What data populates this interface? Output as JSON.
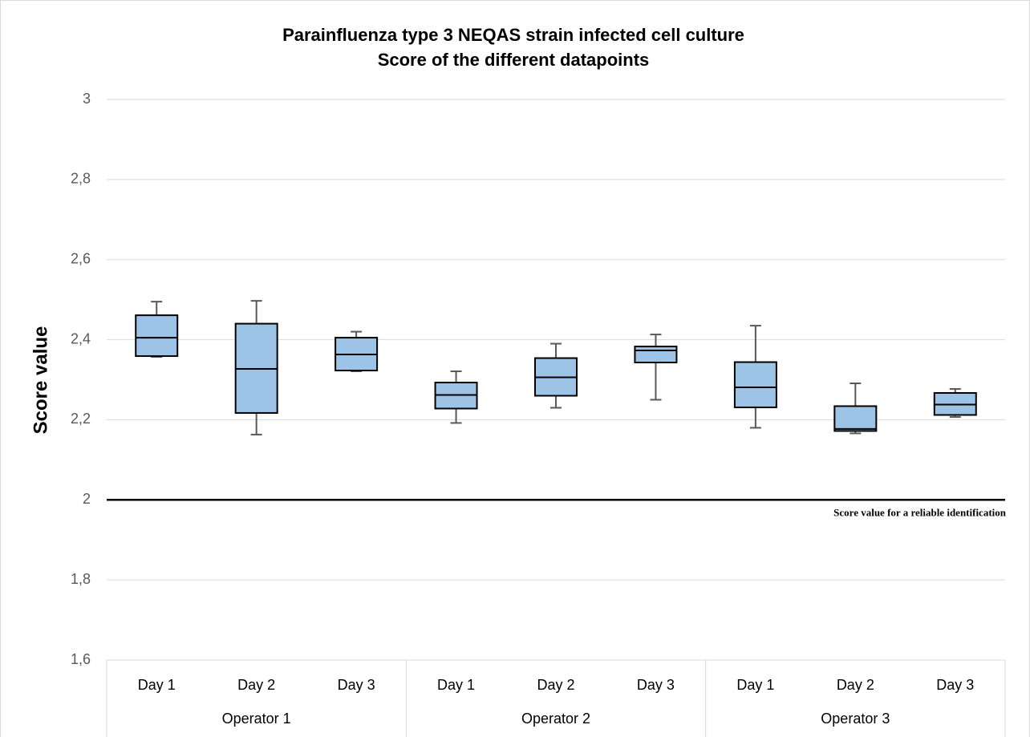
{
  "chart_data": {
    "type": "box",
    "title": "Parainfluenza type 3 NEQAS strain infected cell culture",
    "subtitle": "Score of the different datapoints",
    "y_label": "Score value",
    "groups": [
      {
        "name": "Operator 1",
        "categories": [
          "Day 1",
          "Day 2",
          "Day 3"
        ]
      },
      {
        "name": "Operator 2",
        "categories": [
          "Day 1",
          "Day 2",
          "Day 3"
        ]
      },
      {
        "name": "Operator 3",
        "categories": [
          "Day 1",
          "Day 2",
          "Day 3"
        ]
      }
    ],
    "boxes": [
      {
        "min": 2.357,
        "q1": 2.359,
        "median": 2.405,
        "q3": 2.461,
        "max": 2.495
      },
      {
        "min": 2.163,
        "q1": 2.217,
        "median": 2.327,
        "q3": 2.44,
        "max": 2.497
      },
      {
        "min": 2.321,
        "q1": 2.323,
        "median": 2.363,
        "q3": 2.405,
        "max": 2.42
      },
      {
        "min": 2.192,
        "q1": 2.228,
        "median": 2.262,
        "q3": 2.293,
        "max": 2.321
      },
      {
        "min": 2.23,
        "q1": 2.26,
        "median": 2.306,
        "q3": 2.354,
        "max": 2.39
      },
      {
        "min": 2.25,
        "q1": 2.343,
        "median": 2.373,
        "q3": 2.383,
        "max": 2.413
      },
      {
        "min": 2.18,
        "q1": 2.231,
        "median": 2.281,
        "q3": 2.344,
        "max": 2.435
      },
      {
        "min": 2.166,
        "q1": 2.172,
        "median": 2.177,
        "q3": 2.234,
        "max": 2.291
      },
      {
        "min": 2.207,
        "q1": 2.212,
        "median": 2.238,
        "q3": 2.267,
        "max": 2.277
      }
    ],
    "color": "#9dc3e6",
    "reference_line": {
      "value": 2,
      "label": "Score value for a reliable identification"
    },
    "ylim": [
      1.6,
      3
    ],
    "yticks": [
      {
        "value": 1.6,
        "label": "1,6"
      },
      {
        "value": 1.8,
        "label": "1,8"
      },
      2,
      {
        "value": 2.2,
        "label": "2,2"
      },
      {
        "value": 2.4,
        "label": "2,4"
      },
      {
        "value": 2.6,
        "label": "2,6"
      },
      {
        "value": 2.8,
        "label": "2,8"
      },
      3
    ],
    "grid": true
  }
}
